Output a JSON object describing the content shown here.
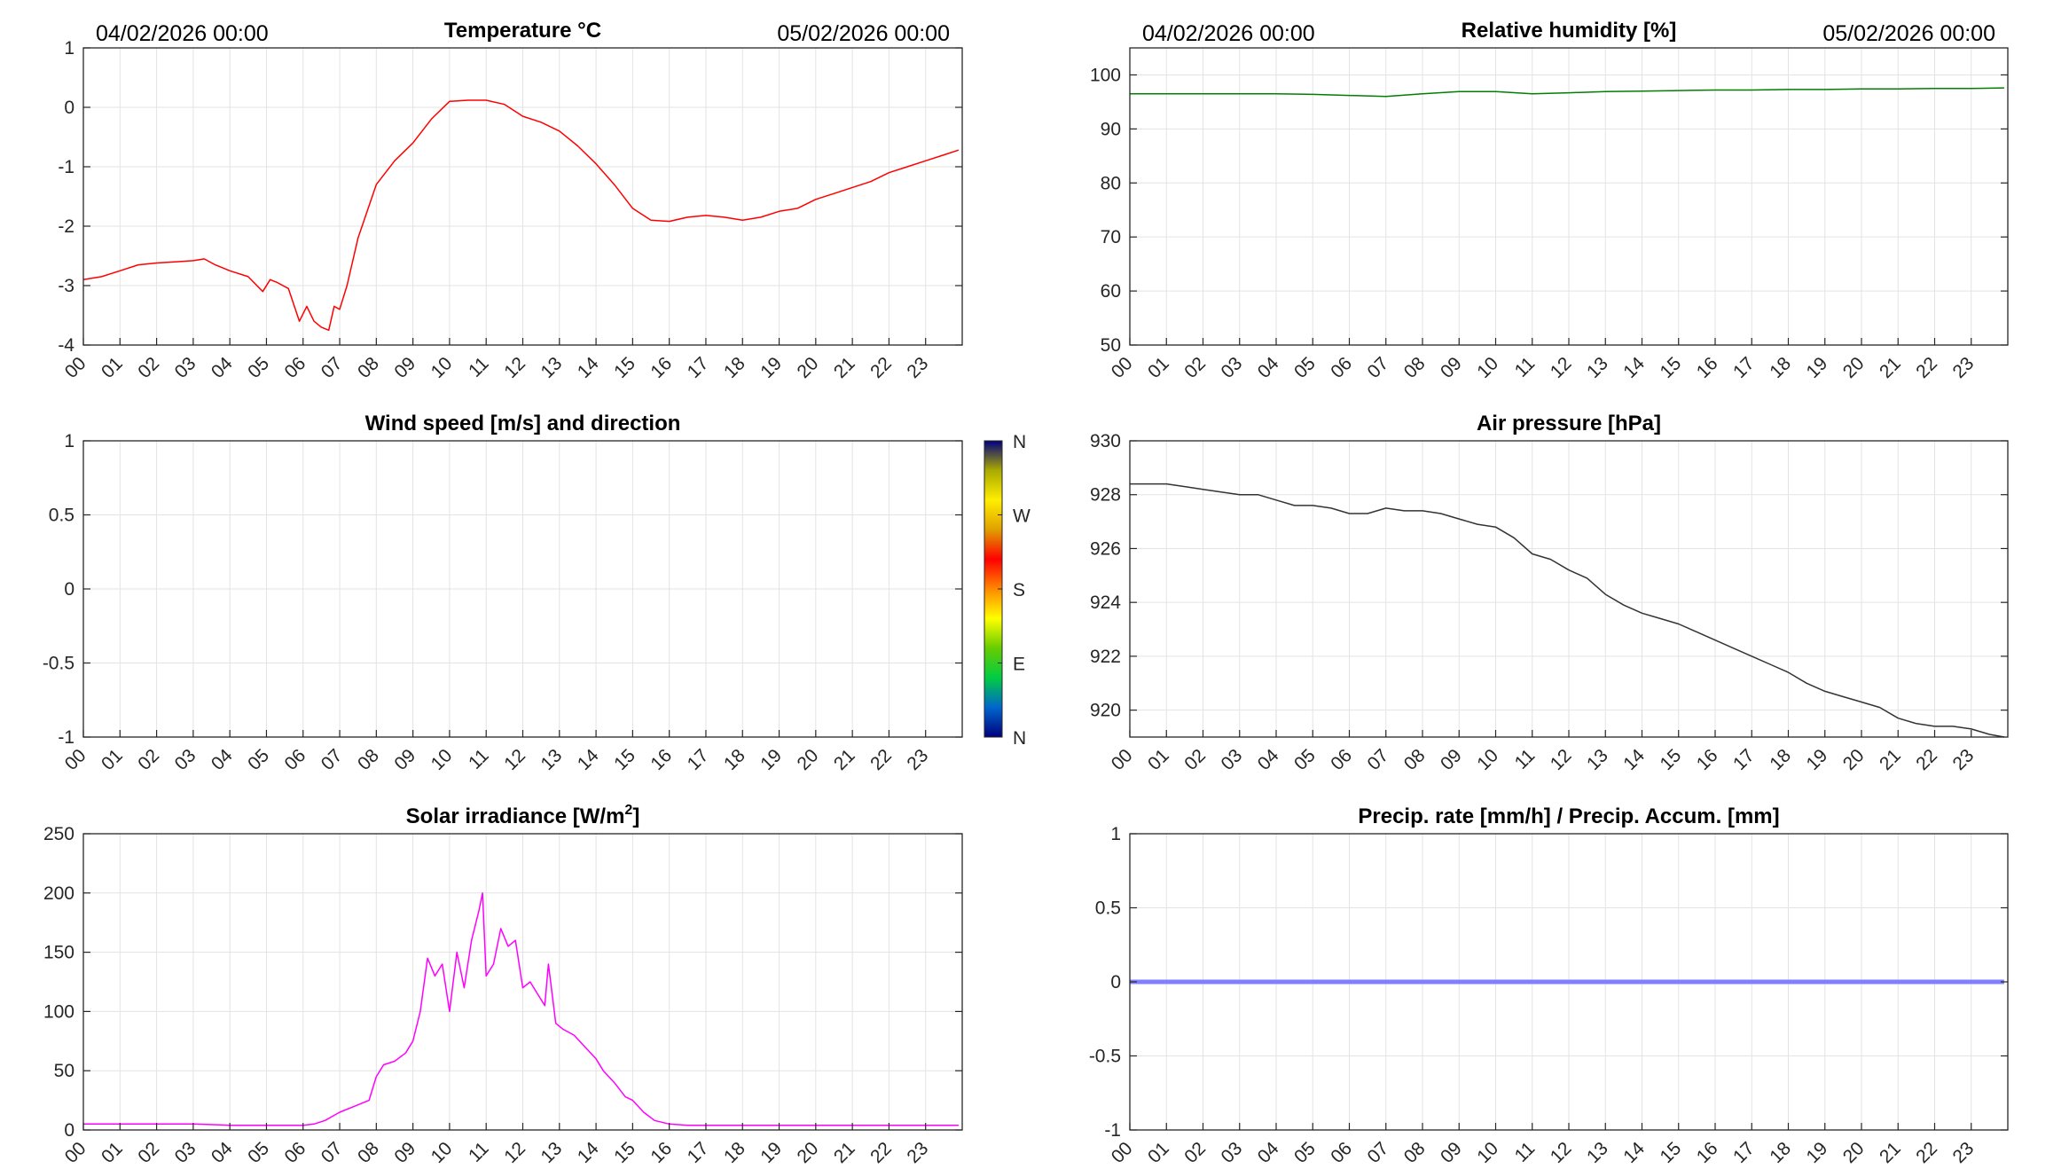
{
  "date_start": "04/02/2026 00:00",
  "date_end": "05/02/2026 00:00",
  "hour_ticks": [
    "00",
    "01",
    "02",
    "03",
    "04",
    "05",
    "06",
    "07",
    "08",
    "09",
    "10",
    "11",
    "12",
    "13",
    "14",
    "15",
    "16",
    "17",
    "18",
    "19",
    "20",
    "21",
    "22",
    "23"
  ],
  "wind_colorbar": {
    "labels": [
      "N",
      "W",
      "S",
      "E",
      "N"
    ],
    "colors": [
      "#00007f",
      "#0066cc",
      "#00cc44",
      "#66cc00",
      "#ffff00",
      "#ff8800",
      "#ff0000",
      "#e0a000",
      "#ffee00",
      "#aaaa00",
      "#00007f"
    ]
  },
  "chart_data": [
    {
      "id": "temperature",
      "type": "line",
      "title": "Temperature °C",
      "color": "#ff0000",
      "ylim": [
        -4,
        1
      ],
      "yticks": [
        -4,
        -3,
        -2,
        -1,
        0,
        1
      ],
      "ytick_labels": [
        "-4",
        "-3",
        "-2",
        "-1",
        "0",
        "1"
      ],
      "x_hours": [
        0,
        0.5,
        1,
        1.5,
        2,
        2.5,
        3,
        3.3,
        3.6,
        4,
        4.5,
        4.9,
        5.1,
        5.3,
        5.6,
        5.9,
        6.1,
        6.3,
        6.5,
        6.7,
        6.85,
        7.0,
        7.2,
        7.5,
        8,
        8.5,
        9,
        9.5,
        10,
        10.5,
        11,
        11.5,
        12,
        12.5,
        13,
        13.5,
        14,
        14.5,
        15,
        15.5,
        16,
        16.5,
        17,
        17.5,
        18,
        18.5,
        19,
        19.5,
        20,
        20.5,
        21,
        21.5,
        22,
        22.5,
        23,
        23.5,
        23.9
      ],
      "y_values": [
        -2.9,
        -2.85,
        -2.75,
        -2.65,
        -2.62,
        -2.6,
        -2.58,
        -2.55,
        -2.65,
        -2.75,
        -2.85,
        -3.1,
        -2.9,
        -2.95,
        -3.05,
        -3.6,
        -3.35,
        -3.6,
        -3.7,
        -3.75,
        -3.35,
        -3.4,
        -3.0,
        -2.2,
        -1.3,
        -0.9,
        -0.6,
        -0.2,
        0.1,
        0.12,
        0.12,
        0.05,
        -0.15,
        -0.25,
        -0.4,
        -0.65,
        -0.95,
        -1.3,
        -1.7,
        -1.9,
        -1.92,
        -1.85,
        -1.82,
        -1.85,
        -1.9,
        -1.85,
        -1.75,
        -1.7,
        -1.55,
        -1.45,
        -1.35,
        -1.25,
        -1.1,
        -1.0,
        -0.9,
        -0.8,
        -0.72
      ]
    },
    {
      "id": "humidity",
      "type": "line",
      "title": "Relative humidity [%]",
      "color": "#007f00",
      "ylim": [
        50,
        105
      ],
      "yticks": [
        50,
        60,
        70,
        80,
        90,
        100
      ],
      "ytick_labels": [
        "50",
        "60",
        "70",
        "80",
        "90",
        "100"
      ],
      "x_hours": [
        0,
        2,
        4,
        5,
        6,
        7,
        8,
        9,
        10,
        11,
        12,
        13,
        14,
        15,
        16,
        17,
        18,
        19,
        20,
        21,
        22,
        23,
        23.9
      ],
      "y_values": [
        96.5,
        96.5,
        96.5,
        96.4,
        96.2,
        96.0,
        96.5,
        96.9,
        96.9,
        96.5,
        96.7,
        96.9,
        97.0,
        97.1,
        97.2,
        97.2,
        97.3,
        97.3,
        97.4,
        97.4,
        97.5,
        97.5,
        97.6
      ]
    },
    {
      "id": "wind",
      "type": "scatter",
      "title": "Wind speed [m/s] and direction",
      "ylim": [
        -1,
        1
      ],
      "yticks": [
        -1,
        -0.5,
        0,
        0.5,
        1
      ],
      "ytick_labels": [
        "-1",
        "-0.5",
        "0",
        "0.5",
        "1"
      ],
      "x_hours": [],
      "y_values": []
    },
    {
      "id": "pressure",
      "type": "line",
      "title": "Air pressure [hPa]",
      "color": "#333333",
      "ylim": [
        919,
        930
      ],
      "yticks": [
        920,
        922,
        924,
        926,
        928,
        930
      ],
      "ytick_labels": [
        "920",
        "922",
        "924",
        "926",
        "928",
        "930"
      ],
      "x_hours": [
        0,
        0.5,
        1,
        1.5,
        2,
        2.5,
        3,
        3.5,
        4,
        4.5,
        5,
        5.5,
        6,
        6.5,
        7,
        7.5,
        8,
        8.5,
        9,
        9.5,
        10,
        10.5,
        11,
        11.5,
        12,
        12.5,
        13,
        13.5,
        14,
        14.5,
        15,
        15.5,
        16,
        16.5,
        17,
        17.5,
        18,
        18.5,
        19,
        19.5,
        20,
        20.5,
        21,
        21.5,
        22,
        22.5,
        23,
        23.5,
        23.9
      ],
      "y_values": [
        928.4,
        928.4,
        928.4,
        928.3,
        928.2,
        928.1,
        928.0,
        928.0,
        927.8,
        927.6,
        927.6,
        927.5,
        927.3,
        927.3,
        927.5,
        927.4,
        927.4,
        927.3,
        927.1,
        926.9,
        926.8,
        926.4,
        925.8,
        925.6,
        925.2,
        924.9,
        924.3,
        923.9,
        923.6,
        923.4,
        923.2,
        922.9,
        922.6,
        922.3,
        922.0,
        921.7,
        921.4,
        921.0,
        920.7,
        920.5,
        920.3,
        920.1,
        919.7,
        919.5,
        919.4,
        919.4,
        919.3,
        919.1,
        919.0
      ]
    },
    {
      "id": "solar",
      "type": "line",
      "title": "Solar irradiance [W/m",
      "title_sup": "2",
      "title_end": "]",
      "color": "#ff00ff",
      "ylim": [
        0,
        250
      ],
      "yticks": [
        0,
        50,
        100,
        150,
        200,
        250
      ],
      "ytick_labels": [
        "0",
        "50",
        "100",
        "150",
        "200",
        "250"
      ],
      "x_hours": [
        0,
        1,
        2,
        3,
        4,
        5,
        6,
        6.3,
        6.6,
        7,
        7.4,
        7.8,
        8,
        8.2,
        8.5,
        8.8,
        9,
        9.2,
        9.4,
        9.6,
        9.8,
        10,
        10.2,
        10.4,
        10.6,
        10.8,
        10.9,
        11.0,
        11.2,
        11.4,
        11.6,
        11.8,
        12,
        12.2,
        12.4,
        12.6,
        12.7,
        12.9,
        13.1,
        13.4,
        13.7,
        14,
        14.2,
        14.5,
        14.8,
        15,
        15.3,
        15.6,
        16,
        16.5,
        17,
        18,
        19,
        20,
        21,
        22,
        23,
        23.9
      ],
      "y_values": [
        5,
        5,
        5,
        5,
        4,
        4,
        4,
        5,
        8,
        15,
        20,
        25,
        45,
        55,
        58,
        65,
        75,
        100,
        145,
        130,
        140,
        100,
        150,
        120,
        160,
        185,
        200,
        130,
        140,
        170,
        155,
        160,
        120,
        125,
        115,
        105,
        140,
        90,
        85,
        80,
        70,
        60,
        50,
        40,
        28,
        25,
        15,
        8,
        5,
        4,
        4,
        4,
        4,
        4,
        4,
        4,
        4,
        4
      ]
    },
    {
      "id": "precip",
      "type": "line",
      "title": "Precip. rate [mm/h] / Precip. Accum. [mm]",
      "color": "#7f7fff",
      "ylim": [
        -1,
        1
      ],
      "yticks": [
        -1,
        -0.5,
        0,
        0.5,
        1
      ],
      "ytick_labels": [
        "-1",
        "-0.5",
        "0",
        "0.5",
        "1"
      ],
      "x_hours": [
        0,
        23.9
      ],
      "y_values": [
        0,
        0
      ]
    }
  ]
}
